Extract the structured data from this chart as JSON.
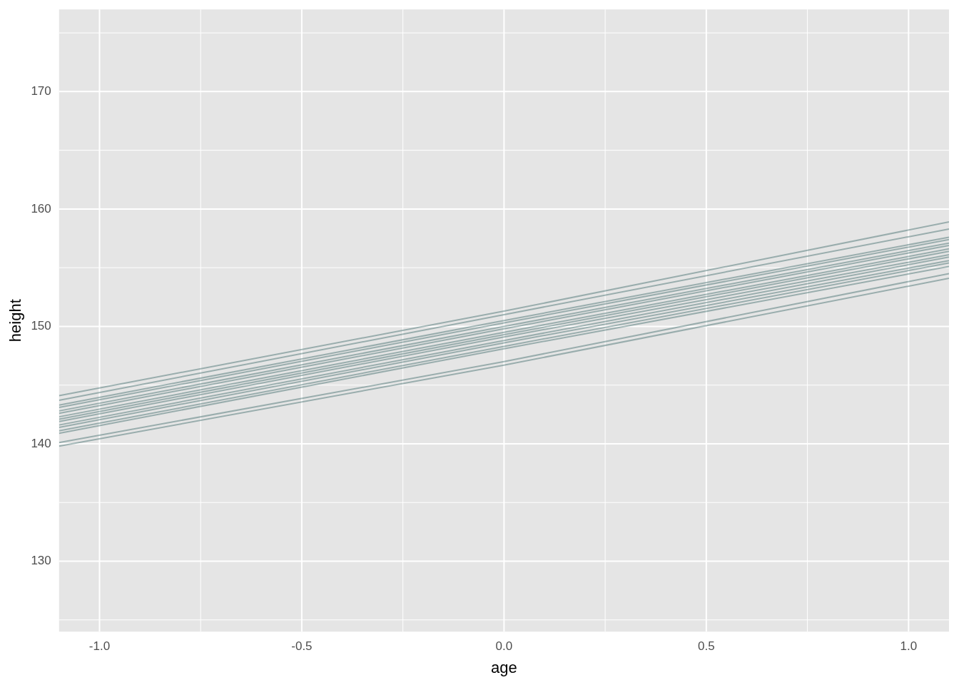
{
  "chart_data": {
    "type": "line",
    "xlabel": "age",
    "ylabel": "height",
    "xlim": [
      -1.1,
      1.1
    ],
    "ylim": [
      124,
      177
    ],
    "xticks": [
      {
        "value": -1,
        "label": "-1.0"
      },
      {
        "value": -0.5,
        "label": "-0.5"
      },
      {
        "value": 0,
        "label": "0.0"
      },
      {
        "value": 0.5,
        "label": "0.5"
      },
      {
        "value": 1,
        "label": "1.0"
      }
    ],
    "yticks": [
      130,
      140,
      150,
      160,
      170
    ],
    "grid": true,
    "legend": false,
    "marker": "none",
    "line_style": "solid",
    "series": [
      {
        "color": "#2f5f5f",
        "x": [
          -1.1,
          0,
          1.1
        ],
        "values": [
          144.1,
          151.3,
          158.9
        ]
      },
      {
        "color": "#2f5f5f",
        "x": [
          -1.1,
          0,
          1.1
        ],
        "values": [
          143.7,
          151.0,
          158.3
        ]
      },
      {
        "color": "#2f5f5f",
        "x": [
          -1.1,
          0,
          1.1
        ],
        "values": [
          143.3,
          150.5,
          157.6
        ]
      },
      {
        "color": "#2f5f5f",
        "x": [
          -1.1,
          0,
          1.1
        ],
        "values": [
          143.1,
          150.3,
          157.4
        ]
      },
      {
        "color": "#2f5f5f",
        "x": [
          -1.1,
          0,
          1.1
        ],
        "values": [
          142.8,
          150.0,
          157.1
        ]
      },
      {
        "color": "#2f5f5f",
        "x": [
          -1.1,
          0,
          1.1
        ],
        "values": [
          142.6,
          149.8,
          156.9
        ]
      },
      {
        "color": "#2f5f5f",
        "x": [
          -1.1,
          0,
          1.1
        ],
        "values": [
          142.3,
          149.5,
          156.6
        ]
      },
      {
        "color": "#2f5f5f",
        "x": [
          -1.1,
          0,
          1.1
        ],
        "values": [
          142.1,
          149.3,
          156.4
        ]
      },
      {
        "color": "#2f5f5f",
        "x": [
          -1.1,
          0,
          1.1
        ],
        "values": [
          141.9,
          149.1,
          156.1
        ]
      },
      {
        "color": "#2f5f5f",
        "x": [
          -1.1,
          0,
          1.1
        ],
        "values": [
          141.6,
          148.8,
          155.9
        ]
      },
      {
        "color": "#2f5f5f",
        "x": [
          -1.1,
          0,
          1.1
        ],
        "values": [
          141.4,
          148.6,
          155.6
        ]
      },
      {
        "color": "#2f5f5f",
        "x": [
          -1.1,
          0,
          1.1
        ],
        "values": [
          141.1,
          148.3,
          155.4
        ]
      },
      {
        "color": "#2f5f5f",
        "x": [
          -1.1,
          0,
          1.1
        ],
        "values": [
          140.9,
          148.1,
          155.1
        ]
      },
      {
        "color": "#2f5f5f",
        "x": [
          -1.1,
          0,
          1.1
        ],
        "values": [
          140.1,
          147.0,
          154.5
        ]
      },
      {
        "color": "#2f5f5f",
        "x": [
          -1.1,
          0,
          1.1
        ],
        "values": [
          139.8,
          146.7,
          154.1
        ]
      }
    ]
  }
}
